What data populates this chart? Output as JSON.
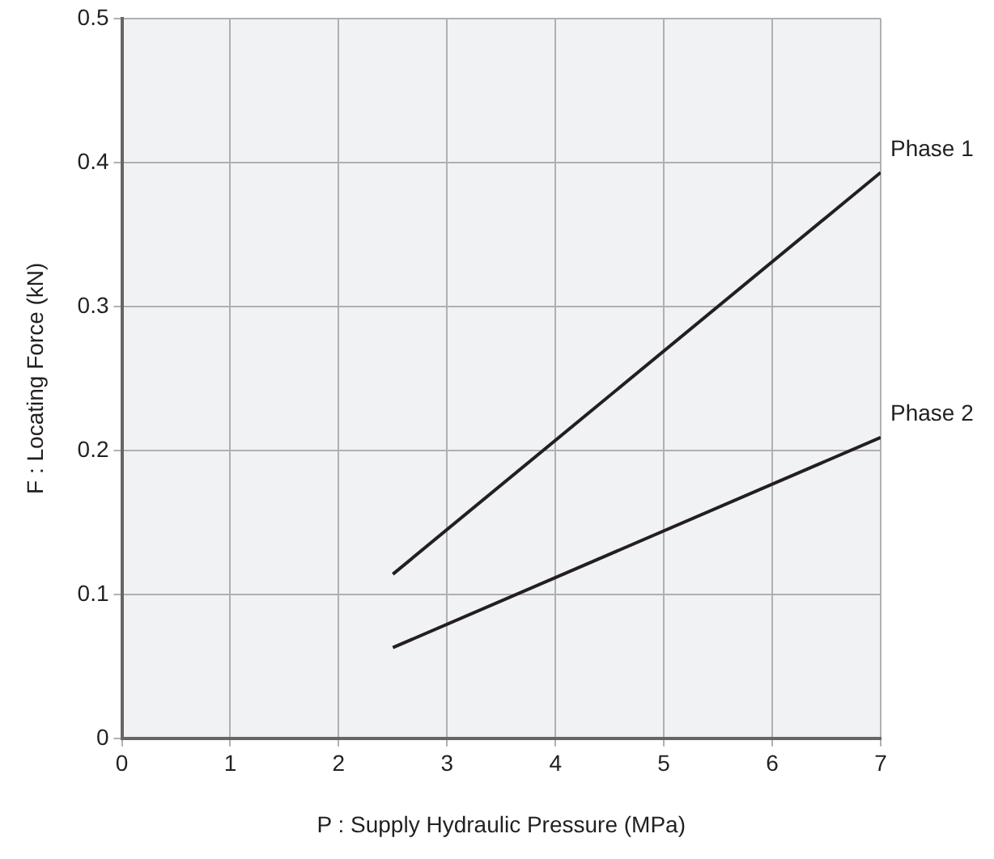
{
  "chart_data": {
    "type": "line",
    "xlabel": "P : Supply Hydraulic Pressure (MPa)",
    "ylabel": "F : Locating Force (kN)",
    "xlim": [
      0,
      7
    ],
    "xticks": [
      0,
      1,
      2,
      3,
      4,
      5,
      6,
      7
    ],
    "ylim": [
      0,
      0.5
    ],
    "yticks": [
      0,
      0.1,
      0.2,
      0.3,
      0.4,
      0.5
    ],
    "grid": true,
    "marker": "none",
    "line_style": "solid",
    "x": [
      2.5,
      7
    ],
    "series": [
      {
        "name": "Phase 1",
        "color": "#231f20",
        "values": [
          0.114,
          0.393
        ]
      },
      {
        "name": "Phase 2",
        "color": "#231f20",
        "values": [
          0.063,
          0.209
        ]
      }
    ]
  }
}
